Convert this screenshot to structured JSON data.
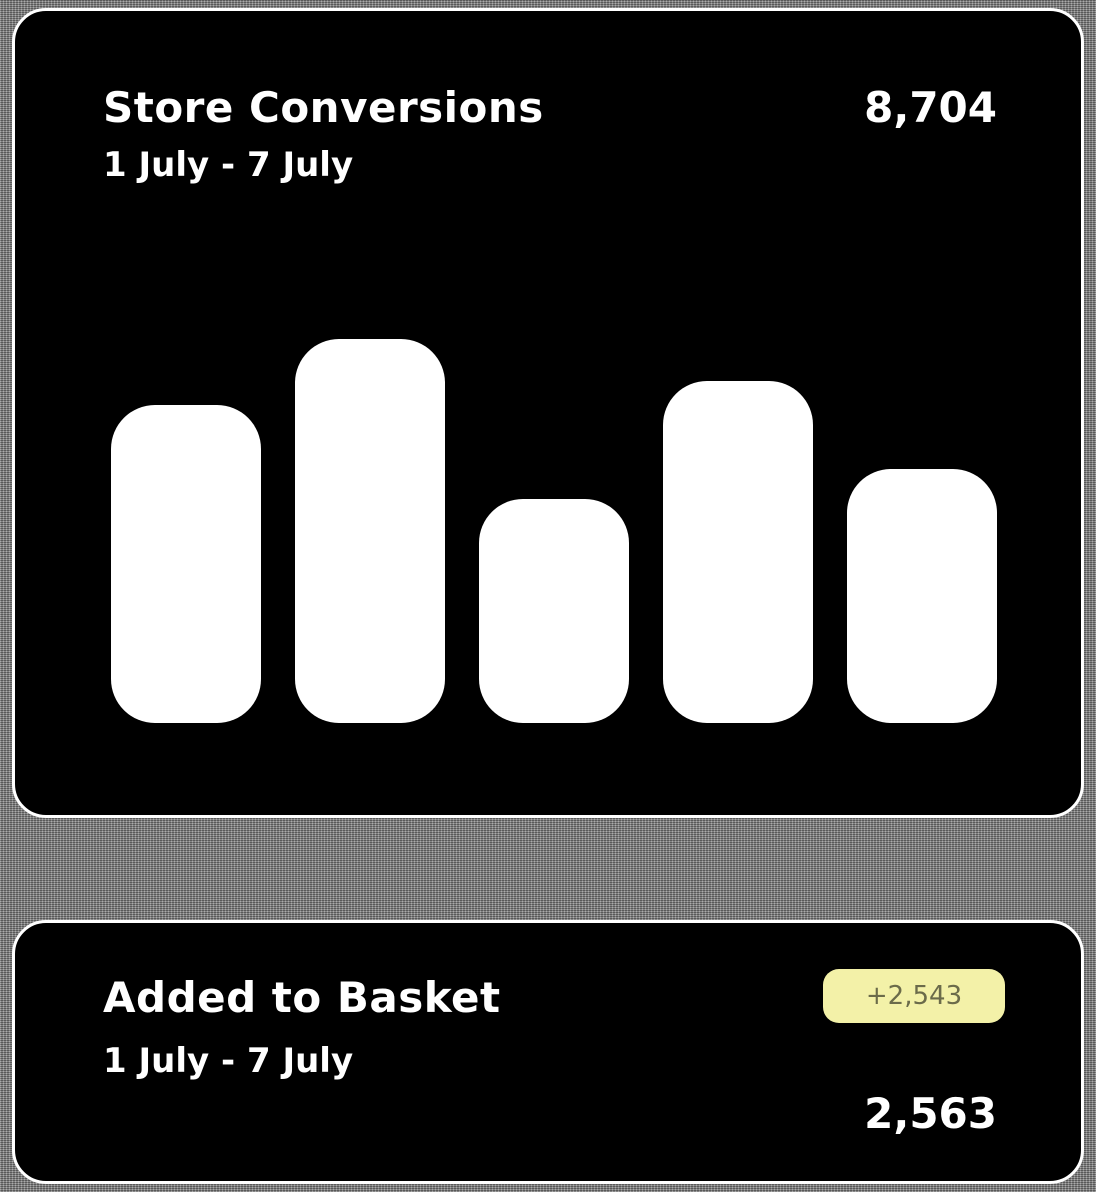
{
  "conversions_card": {
    "title": "Store Conversions",
    "date_range": "1 July - 7 July",
    "total": "8,704"
  },
  "basket_card": {
    "title": "Added to Basket",
    "date_range": "1 July - 7 July",
    "change_badge": "+2,543",
    "total": "2,563"
  },
  "colors": {
    "card_background": "#000000",
    "bar": "#ffffff",
    "badge_background": "#f3f1a8",
    "badge_text": "#6b6b4a"
  },
  "chart_data": {
    "type": "bar",
    "values": [
      318,
      384,
      224,
      342,
      254
    ],
    "ylim": [
      0,
      392
    ],
    "grid": false,
    "legend": "none"
  }
}
